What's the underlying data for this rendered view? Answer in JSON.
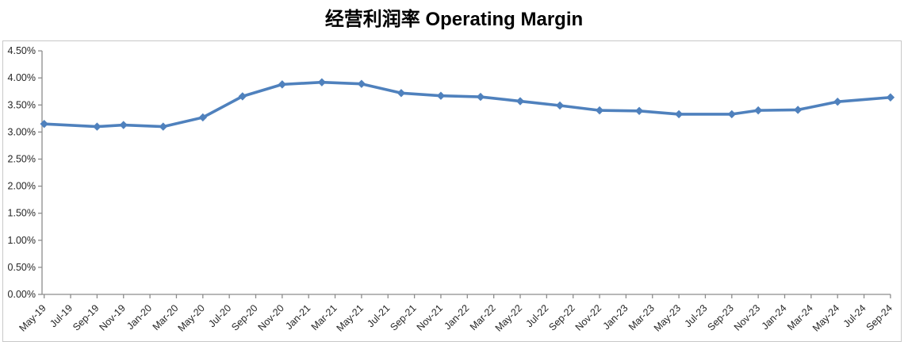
{
  "title": "经营利润率 Operating Margin",
  "colors": {
    "series_line": "#4F81BD",
    "axis_line": "#8c8c8c",
    "tick_label": "#262626",
    "frame_border": "#c8c8c8",
    "title_text": "#000000",
    "background": "#ffffff"
  },
  "chart_data": {
    "type": "line",
    "title": "经营利润率 Operating Margin",
    "xlabel": "",
    "ylabel": "",
    "y_unit": "%",
    "ylim": [
      0,
      4.5
    ],
    "y_tick_step": 0.5,
    "grid": false,
    "legend_position": "none",
    "marker_shape": "diamond",
    "x_axis_start_label": "May-19",
    "x_axis_months_span": 64,
    "x_tick_interval_months": 2,
    "x_tick_labels": [
      "May-19",
      "Jul-19",
      "Sep-19",
      "Nov-19",
      "Jan-20",
      "Mar-20",
      "May-20",
      "Jul-20",
      "Sep-20",
      "Nov-20",
      "Jan-21",
      "Mar-21",
      "May-21",
      "Jul-21",
      "Sep-21",
      "Nov-21",
      "Jan-22",
      "Mar-22",
      "May-22",
      "Jul-22",
      "Sep-22",
      "Nov-22",
      "Jan-23",
      "Mar-23",
      "May-23",
      "Jul-23",
      "Sep-23",
      "Nov-23",
      "Jan-24",
      "Mar-24",
      "May-24",
      "Jul-24",
      "Sep-24"
    ],
    "y_tick_labels": [
      "0.00%",
      "0.50%",
      "1.00%",
      "1.50%",
      "2.00%",
      "2.50%",
      "3.00%",
      "3.50%",
      "4.00%",
      "4.50%"
    ],
    "series": [
      {
        "name": "经营利润率 Operating Margin",
        "color": "#4F81BD",
        "points": [
          {
            "period": "May-19",
            "month_offset": 0,
            "value": 3.15
          },
          {
            "period": "Sep-19",
            "month_offset": 4,
            "value": 3.1
          },
          {
            "period": "Nov-19",
            "month_offset": 6,
            "value": 3.13
          },
          {
            "period": "Feb-20",
            "month_offset": 9,
            "value": 3.1
          },
          {
            "period": "May-20",
            "month_offset": 12,
            "value": 3.27
          },
          {
            "period": "Aug-20",
            "month_offset": 15,
            "value": 3.66
          },
          {
            "period": "Nov-20",
            "month_offset": 18,
            "value": 3.88
          },
          {
            "period": "Feb-21",
            "month_offset": 21,
            "value": 3.92
          },
          {
            "period": "May-21",
            "month_offset": 24,
            "value": 3.89
          },
          {
            "period": "Aug-21",
            "month_offset": 27,
            "value": 3.72
          },
          {
            "period": "Nov-21",
            "month_offset": 30,
            "value": 3.67
          },
          {
            "period": "Feb-22",
            "month_offset": 33,
            "value": 3.65
          },
          {
            "period": "May-22",
            "month_offset": 36,
            "value": 3.57
          },
          {
            "period": "Aug-22",
            "month_offset": 39,
            "value": 3.49
          },
          {
            "period": "Nov-22",
            "month_offset": 42,
            "value": 3.4
          },
          {
            "period": "Feb-23",
            "month_offset": 45,
            "value": 3.39
          },
          {
            "period": "May-23",
            "month_offset": 48,
            "value": 3.33
          },
          {
            "period": "Sep-23",
            "month_offset": 52,
            "value": 3.33
          },
          {
            "period": "Nov-23",
            "month_offset": 54,
            "value": 3.4
          },
          {
            "period": "Feb-24",
            "month_offset": 57,
            "value": 3.41
          },
          {
            "period": "May-24",
            "month_offset": 60,
            "value": 3.56
          },
          {
            "period": "Sep-24",
            "month_offset": 64,
            "value": 3.64
          }
        ]
      }
    ]
  }
}
